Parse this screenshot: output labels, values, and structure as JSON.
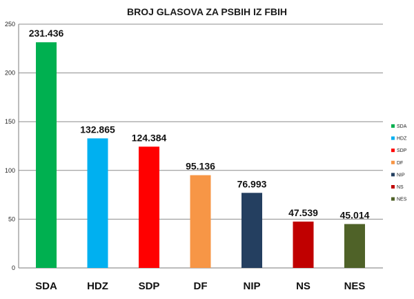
{
  "chart_data": {
    "type": "bar",
    "title": "BROJ GLASOVA ZA PSBIH IZ FBIH",
    "xlabel": "",
    "ylabel": "",
    "categories": [
      "SDA",
      "HDZ",
      "SDP",
      "DF",
      "NIP",
      "NS",
      "NES"
    ],
    "values": [
      231.436,
      132.865,
      124.384,
      95.136,
      76.993,
      47.539,
      45.014
    ],
    "data_labels": [
      "231.436",
      "132.865",
      "124.384",
      "95.136",
      "76.993",
      "47.539",
      "45.014"
    ],
    "colors": [
      "#00b050",
      "#00b0f0",
      "#ff0000",
      "#f79646",
      "#243f60",
      "#c00000",
      "#4f6228"
    ],
    "ylim": [
      0,
      250
    ],
    "yticks": [
      0,
      50,
      100,
      150,
      200,
      250
    ],
    "grid": true,
    "legend_position": "right",
    "legend": [
      "SDA",
      "HDZ",
      "SDP",
      "DF",
      "NIP",
      "NS",
      "NES"
    ]
  }
}
